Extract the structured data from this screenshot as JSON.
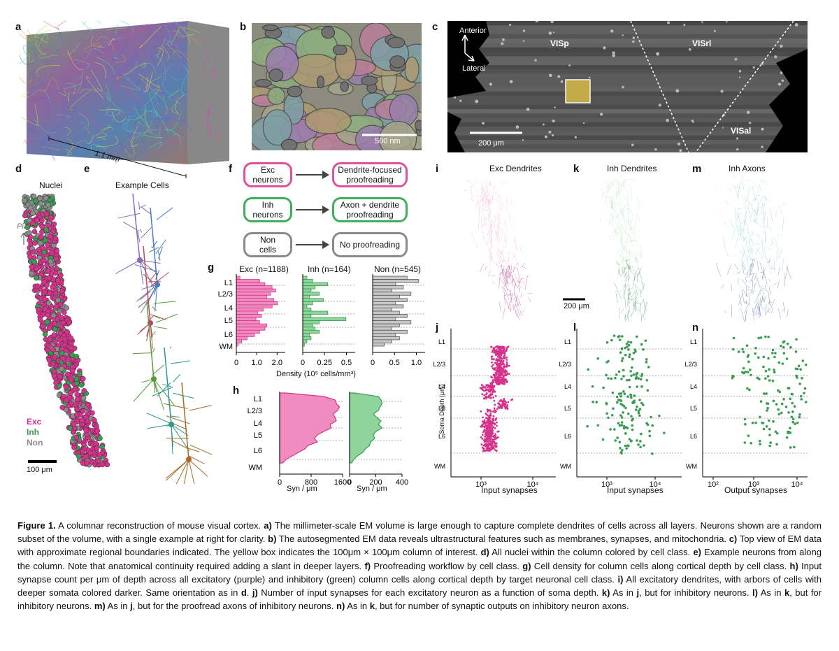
{
  "panels": {
    "a": {
      "letter": "a",
      "scale": "1.1 mm"
    },
    "b": {
      "letter": "b",
      "scale": "500 nm"
    },
    "c": {
      "letter": "c",
      "anterior": "Anterior",
      "lateral": "Lateral",
      "visp": "VISp",
      "visrl": "VISrl",
      "visal": "VISal",
      "scale": "200 μm"
    },
    "d": {
      "letter": "d",
      "title": "Nuclei",
      "pia": "Pia",
      "exc": "Exc",
      "inh": "Inh",
      "non": "Non",
      "scale": "100 μm"
    },
    "e": {
      "letter": "e",
      "title": "Example Cells"
    },
    "f": {
      "letter": "f",
      "rows": [
        {
          "left": "Exc\nneurons",
          "right": "Dendrite-focused\nproofreading",
          "color": "#e0509a"
        },
        {
          "left": "Inh\nneurons",
          "right": "Axon + dendrite\nproofreading",
          "color": "#3fae5a"
        },
        {
          "left": "Non\ncells",
          "right": "No proofreading",
          "color": "#8a8a8a"
        }
      ]
    },
    "g": {
      "letter": "g",
      "exc_title": "Exc (n=1188)",
      "inh_title": "Inh (n=164)",
      "non_title": "Non (n=545)",
      "layers": [
        "L1",
        "L2/3",
        "L4",
        "L5",
        "L6",
        "WM"
      ],
      "exc_ticks": [
        "0",
        "1.0",
        "2.0"
      ],
      "inh_ticks": [
        "0",
        "0.25",
        "0.5"
      ],
      "non_ticks": [
        "0",
        "0.5",
        "1.0"
      ],
      "xlabel": "Density (10⁵ cells/mm³)"
    },
    "h": {
      "letter": "h",
      "layers": [
        "L1",
        "L2/3",
        "L4",
        "L5",
        "L6",
        "WM"
      ],
      "exc_ticks": [
        "0",
        "800",
        "1600"
      ],
      "inh_ticks": [
        "0",
        "200",
        "400"
      ],
      "xlabel": "Syn / μm"
    },
    "i": {
      "letter": "i",
      "title": "Exc Dendrites"
    },
    "k": {
      "letter": "k",
      "title": "Inh Dendrites",
      "scale": "200 μm"
    },
    "m": {
      "letter": "m",
      "title": "Inh Axons"
    },
    "j": {
      "letter": "j",
      "xlabel": "Input synapses",
      "ylabel": "Soma Depth (μm)"
    },
    "l": {
      "letter": "l",
      "xlabel": "Input synapses"
    },
    "n": {
      "letter": "n",
      "xlabel": "Output synapses"
    },
    "scatter_layers": [
      "L1",
      "L2/3",
      "L4",
      "L5",
      "L6",
      "WM"
    ]
  },
  "caption": {
    "fig": "Figure 1.",
    "intro": " A columnar reconstruction of mouse visual cortex. ",
    "a_l": "a)",
    "a_t": " The millimeter-scale EM volume is large enough to capture complete dendrites of cells across all layers. Neurons shown are a random subset of the volume, with a single example at right for clarity. ",
    "b_l": "b)",
    "b_t": " The autosegmented EM data reveals ultrastructural features such as membranes, synapses, and mitochondria. ",
    "c_l": "c)",
    "c_t": " Top view of EM data with approximate regional boundaries indicated. The yellow box indicates the 100μm × 100μm column of interest. ",
    "d_l": "d)",
    "d_t": " All nuclei within the column colored by cell class. ",
    "e_l": "e)",
    "e_t": " Example neurons from along the column. Note that anatomical continuity required adding a slant in deeper layers. ",
    "f_l": "f)",
    "f_t": " Proofreading workflow by cell class. ",
    "g_l": "g)",
    "g_t": " Cell density for column cells along cortical depth by cell class. ",
    "h_l": "h)",
    "h_t": " Input synapse count per μm of depth across all excitatory (purple) and inhibitory (green) column cells along cortical depth by target neuronal cell class. ",
    "i_l": "i)",
    "i_t": " All excitatory dendrites, with arbors of cells with deeper somata colored darker. Same orientation as in ",
    "i_d": "d",
    "i_e": ". ",
    "j_l": "j)",
    "j_t": " Number of input synapses for each excitatory neuron as a function of soma depth. ",
    "k_l": "k)",
    "k_t": " As in ",
    "k_j": "j",
    "k_e": ", but for inhibitory neurons. ",
    "l_l": "l)",
    "l_t": " As in ",
    "l_k": "k",
    "l_e": ", but for inhibitory neurons. ",
    "m_l": "m)",
    "m_t": " As in ",
    "m_j": "j",
    "m_e": ", but for the proofread axons of inhibitory neurons. ",
    "n_l": "n)",
    "n_t": " As in ",
    "n_k": "k",
    "n_e": ", but for number of synaptic outputs on inhibitory neuron axons."
  },
  "colors": {
    "exc": "#d6328c",
    "inh": "#3a9c52",
    "non": "#8c8c8c",
    "excFill": "#f08cbf",
    "inhFill": "#8fd49a",
    "nonFill": "#c8c8c8"
  }
}
